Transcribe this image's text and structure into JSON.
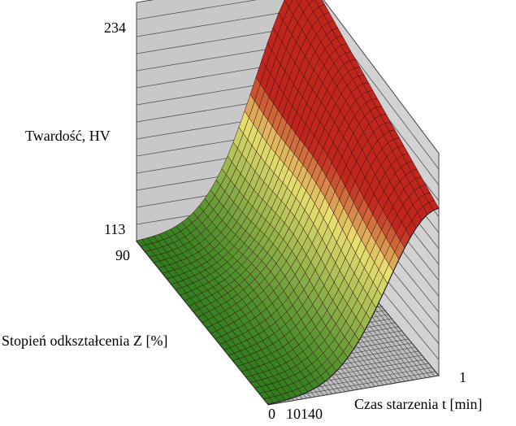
{
  "chart_data": {
    "type": "surface3d",
    "zlabel": "Twardość, HV",
    "ylabel": "Stopień odkształcenia Z [%]",
    "xlabel": "Czas starzenia t [min]",
    "z_ticks": [
      "234",
      "113"
    ],
    "y_ticks": [
      "90",
      "0"
    ],
    "x_ticks": [
      "1",
      "10140"
    ],
    "x_range": [
      1,
      10140
    ],
    "y_range": [
      0,
      90
    ],
    "z_range": [
      113,
      234
    ],
    "surface_peak_hv": 234,
    "surface_min_hv": 113,
    "colors": {
      "low": "#2e7d1e",
      "mid": "#e8e070",
      "high": "#c0261e",
      "walls": "#c8c8c8",
      "grid": "#333333"
    }
  }
}
